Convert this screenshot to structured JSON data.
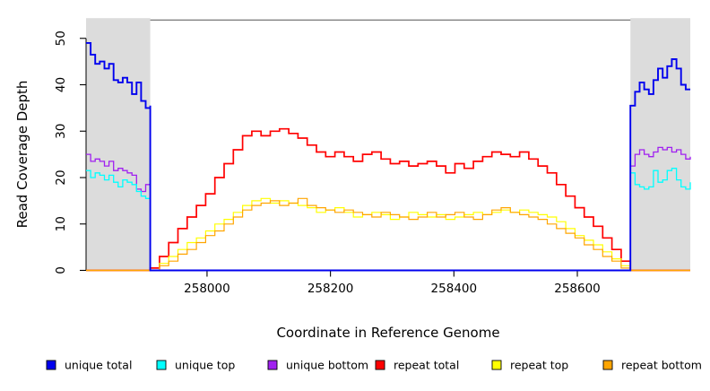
{
  "chart_data": {
    "type": "line",
    "title": "",
    "xlabel": "Coordinate in Reference Genome",
    "ylabel": "Read Coverage Depth",
    "xlim": [
      257804,
      258783
    ],
    "ylim": [
      0,
      54.3
    ],
    "grid": false,
    "x_ticks": [
      {
        "value": 258000,
        "label": "258000"
      },
      {
        "value": 258200,
        "label": "258200"
      },
      {
        "value": 258400,
        "label": "258400"
      },
      {
        "value": 258600,
        "label": "258600"
      }
    ],
    "y_ticks": [
      {
        "value": 0,
        "label": "0"
      },
      {
        "value": 10,
        "label": "10"
      },
      {
        "value": 20,
        "label": "20"
      },
      {
        "value": 30,
        "label": "30"
      },
      {
        "value": 40,
        "label": "40"
      },
      {
        "value": 50,
        "label": "50"
      }
    ],
    "shaded_regions": [
      {
        "x0": 257804,
        "x1": 257908
      },
      {
        "x0": 258686,
        "x1": 258783
      }
    ],
    "shade_color": "#DCDCDC",
    "top_border_color": "#666666",
    "axis_color": "#000000",
    "legend_position": "bottom",
    "legend": {
      "items": [
        {
          "label": "unique total",
          "color": "#0000EE"
        },
        {
          "label": "unique top",
          "color": "#00FFFF"
        },
        {
          "label": "unique bottom",
          "color": "#A020F0"
        },
        {
          "label": "repeat total",
          "color": "#FF0000"
        },
        {
          "label": "repeat top",
          "color": "#FFFF00"
        },
        {
          "label": "repeat bottom",
          "color": "#FFA500"
        }
      ]
    },
    "series": [
      {
        "name": "repeat total",
        "color": "#FF0000",
        "width": 1.7,
        "segments": [
          {
            "x0": 257804,
            "dx": 104,
            "values": [
              0,
              0
            ]
          },
          {
            "x0": 257908,
            "dx": 14.96,
            "values": [
              0.5,
              3,
              6,
              9,
              11.5,
              14,
              16.5,
              20,
              23,
              26,
              29,
              30,
              29,
              30,
              30.5,
              29.5,
              28.5,
              27,
              25.5,
              24.5,
              25.5,
              24.5,
              23.5,
              25,
              25.5,
              24,
              23,
              23.5,
              22.5,
              23,
              23.5,
              22.5,
              21,
              23,
              22,
              23.5,
              24.5,
              25.5,
              25,
              24.5,
              25.5,
              24,
              22.5,
              21,
              18.5,
              16,
              13.5,
              11.5,
              9.5,
              7,
              4.5,
              2,
              0
            ]
          },
          {
            "x0": 258686,
            "dx": 97,
            "values": [
              0,
              0
            ]
          }
        ]
      },
      {
        "name": "repeat top",
        "color": "#FFFF00",
        "width": 1.2,
        "segments": [
          {
            "x0": 257804,
            "dx": 104,
            "values": [
              0,
              0
            ]
          },
          {
            "x0": 257908,
            "dx": 14.96,
            "values": [
              0,
              1.5,
              3,
              4.5,
              6,
              7,
              8.5,
              10,
              11,
              12.5,
              14,
              15,
              15.5,
              14.5,
              15,
              14.5,
              14,
              13.5,
              12.5,
              13,
              13.5,
              12.5,
              11.5,
              12,
              12.5,
              12,
              11,
              11.5,
              12.5,
              12,
              11.5,
              12,
              11,
              11.5,
              12,
              12.5,
              12,
              12.5,
              13,
              12.5,
              13,
              12.5,
              12,
              11.5,
              10.5,
              9,
              7.5,
              6.5,
              5.5,
              4,
              2.5,
              1,
              0
            ]
          },
          {
            "x0": 258686,
            "dx": 97,
            "values": [
              0,
              0
            ]
          }
        ]
      },
      {
        "name": "repeat bottom",
        "color": "#FFA500",
        "width": 1.2,
        "segments": [
          {
            "x0": 257804,
            "dx": 104,
            "values": [
              0,
              0
            ]
          },
          {
            "x0": 257908,
            "dx": 14.96,
            "values": [
              0,
              1,
              2,
              3.5,
              4.5,
              6,
              7.5,
              8.5,
              10,
              11.5,
              13,
              14,
              14.5,
              15,
              14,
              14.5,
              15.5,
              14,
              13.5,
              13,
              12.5,
              13,
              12.5,
              12,
              11.5,
              12.5,
              12,
              11.5,
              11,
              11.5,
              12.5,
              11.5,
              12,
              12.5,
              11.5,
              11,
              12,
              13,
              13.5,
              12.5,
              12,
              11.5,
              11,
              10,
              9,
              8,
              7,
              5.5,
              4.5,
              3,
              2,
              0.5,
              0
            ]
          },
          {
            "x0": 258686,
            "dx": 97,
            "values": [
              0,
              0
            ]
          }
        ]
      },
      {
        "name": "unique bottom",
        "color": "#A020F0",
        "width": 1.3,
        "segments": [
          {
            "x0": 257804,
            "dx": 7.43,
            "values": [
              25,
              23.5,
              24,
              23.5,
              22.5,
              23.5,
              21.5,
              22,
              21.5,
              21,
              20.5,
              17.5,
              17,
              18.5,
              20
            ]
          },
          {
            "x0": 257908,
            "dx": 778,
            "values": [
              0,
              0
            ]
          },
          {
            "x0": 258686,
            "dx": 7.46,
            "values": [
              22.5,
              25,
              26,
              25,
              24.5,
              25.5,
              26.5,
              26,
              26.5,
              25.5,
              26,
              25,
              24,
              24.5
            ]
          }
        ]
      },
      {
        "name": "unique top",
        "color": "#00FFFF",
        "width": 1.3,
        "segments": [
          {
            "x0": 257804,
            "dx": 7.43,
            "values": [
              21.5,
              20,
              21,
              20.5,
              19.5,
              20.5,
              19,
              18,
              19.5,
              19,
              18.5,
              17,
              16,
              15.5,
              15.5
            ]
          },
          {
            "x0": 257908,
            "dx": 778,
            "values": [
              0,
              0
            ]
          },
          {
            "x0": 258686,
            "dx": 7.46,
            "values": [
              21,
              18.5,
              18,
              17.5,
              18,
              21.5,
              19,
              19.5,
              21.5,
              22,
              19.5,
              18,
              17.5,
              19
            ]
          }
        ]
      },
      {
        "name": "unique total",
        "color": "#0000EE",
        "width": 1.9,
        "segments": [
          {
            "x0": 257804,
            "dx": 7.43,
            "values": [
              49,
              46.5,
              44.5,
              45,
              43.5,
              44.5,
              41,
              40.5,
              41.5,
              40.5,
              38,
              40.5,
              36.5,
              35,
              35.5
            ]
          },
          {
            "x0": 257908,
            "dx": 778,
            "values": [
              0,
              0
            ]
          },
          {
            "x0": 258686,
            "dx": 7.46,
            "values": [
              35.5,
              38.5,
              40.5,
              39,
              38,
              41,
              43.5,
              41.5,
              44,
              45.5,
              43.5,
              40,
              39,
              39
            ]
          }
        ]
      }
    ]
  }
}
